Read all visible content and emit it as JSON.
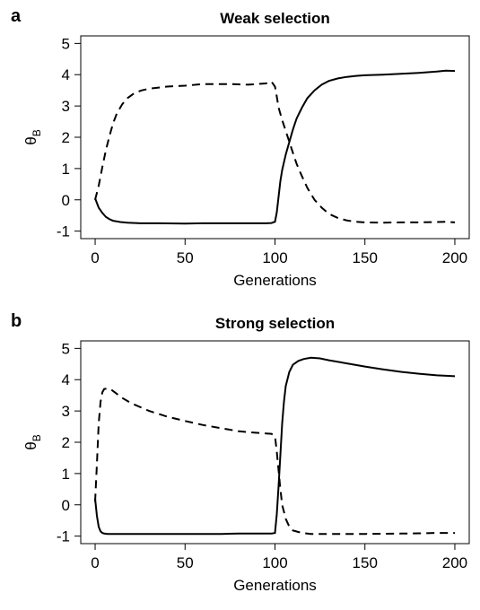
{
  "chart_data": [
    {
      "type": "line",
      "panel_label": "a",
      "title": "Weak selection",
      "xlabel": "Generations",
      "ylabel_main": "θ",
      "ylabel_sub": "B",
      "xlim": [
        0,
        200
      ],
      "ylim": [
        -1,
        5
      ],
      "xticks": [
        0,
        50,
        100,
        150,
        200
      ],
      "yticks": [
        -1,
        0,
        1,
        2,
        3,
        4,
        5
      ],
      "grid": false,
      "legend": "none",
      "series": [
        {
          "style": "solid",
          "x": [
            0,
            2,
            4,
            6,
            8,
            10,
            14,
            18,
            25,
            35,
            50,
            60,
            75,
            85,
            95,
            98,
            100,
            101,
            102,
            103,
            104,
            106,
            108,
            110,
            112,
            115,
            118,
            122,
            126,
            130,
            135,
            140,
            145,
            150,
            160,
            170,
            180,
            190,
            195,
            200
          ],
          "y": [
            0.05,
            -0.25,
            -0.42,
            -0.55,
            -0.62,
            -0.67,
            -0.71,
            -0.73,
            -0.75,
            -0.75,
            -0.76,
            -0.75,
            -0.75,
            -0.75,
            -0.75,
            -0.74,
            -0.7,
            -0.4,
            0.1,
            0.6,
            0.95,
            1.45,
            1.85,
            2.25,
            2.6,
            2.95,
            3.25,
            3.5,
            3.68,
            3.8,
            3.88,
            3.93,
            3.96,
            3.98,
            4.0,
            4.03,
            4.06,
            4.1,
            4.13,
            4.12
          ]
        },
        {
          "style": "dashed",
          "x": [
            0,
            2,
            4,
            6,
            8,
            10,
            12,
            15,
            18,
            22,
            26,
            30,
            40,
            50,
            60,
            75,
            85,
            95,
            98,
            100,
            101,
            102,
            104,
            106,
            108,
            110,
            112,
            115,
            118,
            122,
            126,
            130,
            135,
            140,
            145,
            150,
            160,
            170,
            180,
            190,
            195,
            200
          ],
          "y": [
            0.0,
            0.45,
            1.05,
            1.6,
            2.05,
            2.45,
            2.75,
            3.05,
            3.25,
            3.42,
            3.5,
            3.55,
            3.62,
            3.65,
            3.7,
            3.7,
            3.68,
            3.72,
            3.78,
            3.62,
            3.3,
            2.95,
            2.55,
            2.2,
            1.85,
            1.5,
            1.15,
            0.75,
            0.38,
            0.0,
            -0.25,
            -0.45,
            -0.58,
            -0.66,
            -0.7,
            -0.72,
            -0.73,
            -0.72,
            -0.72,
            -0.71,
            -0.7,
            -0.72
          ]
        }
      ]
    },
    {
      "type": "line",
      "panel_label": "b",
      "title": "Strong selection",
      "xlabel": "Generations",
      "ylabel_main": "θ",
      "ylabel_sub": "B",
      "xlim": [
        0,
        200
      ],
      "ylim": [
        -1,
        5
      ],
      "xticks": [
        0,
        50,
        100,
        150,
        200
      ],
      "yticks": [
        -1,
        0,
        1,
        2,
        3,
        4,
        5
      ],
      "grid": false,
      "legend": "none",
      "series": [
        {
          "style": "solid",
          "x": [
            0,
            1,
            2,
            3,
            4,
            5,
            7,
            10,
            20,
            40,
            60,
            70,
            80,
            90,
            98,
            100,
            101,
            102,
            103,
            104,
            105,
            106,
            108,
            110,
            113,
            116,
            120,
            125,
            130,
            140,
            150,
            160,
            170,
            180,
            190,
            200
          ],
          "y": [
            0.2,
            -0.35,
            -0.7,
            -0.85,
            -0.9,
            -0.92,
            -0.93,
            -0.93,
            -0.93,
            -0.93,
            -0.93,
            -0.93,
            -0.92,
            -0.92,
            -0.92,
            -0.9,
            -0.3,
            0.6,
            1.6,
            2.6,
            3.3,
            3.8,
            4.25,
            4.48,
            4.6,
            4.66,
            4.7,
            4.68,
            4.62,
            4.52,
            4.42,
            4.33,
            4.25,
            4.19,
            4.14,
            4.11
          ]
        },
        {
          "style": "dashed",
          "x": [
            0,
            1,
            2,
            3,
            4,
            5,
            7,
            9,
            12,
            15,
            20,
            30,
            40,
            50,
            60,
            70,
            80,
            90,
            98,
            100,
            101,
            102,
            103,
            104,
            106,
            108,
            110,
            115,
            120,
            130,
            150,
            170,
            180,
            190,
            200
          ],
          "y": [
            0.1,
            1.3,
            2.6,
            3.3,
            3.6,
            3.7,
            3.72,
            3.68,
            3.55,
            3.42,
            3.25,
            3.0,
            2.82,
            2.68,
            2.55,
            2.45,
            2.35,
            2.3,
            2.27,
            2.2,
            1.7,
            1.1,
            0.5,
            0.0,
            -0.45,
            -0.7,
            -0.82,
            -0.9,
            -0.93,
            -0.93,
            -0.93,
            -0.92,
            -0.91,
            -0.9,
            -0.9
          ]
        }
      ]
    }
  ]
}
